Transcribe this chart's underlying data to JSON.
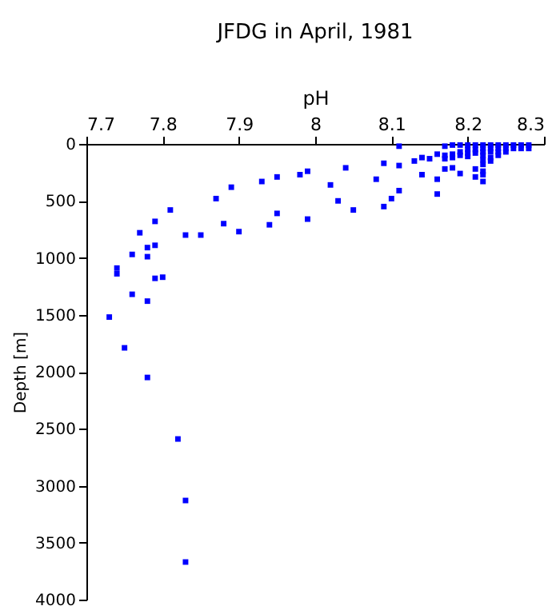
{
  "chart_data": {
    "type": "scatter",
    "title": "JFDG in April, 1981",
    "xlabel": "pH",
    "ylabel": "Depth [m]",
    "xlim": [
      7.7,
      8.3
    ],
    "xticks": [
      7.7,
      7.8,
      7.9,
      8,
      8.1,
      8.2,
      8.3
    ],
    "ylim": [
      4000,
      0
    ],
    "yticks": [
      0,
      500,
      1000,
      1500,
      2000,
      2500,
      3000,
      3500,
      4000
    ],
    "grid": false,
    "marker": "square",
    "legend": false,
    "series": [
      {
        "color": "#0000ff",
        "x": [
          7.98,
          7.95,
          7.93,
          7.89,
          7.87,
          7.81,
          7.79,
          7.77,
          7.83,
          7.85,
          7.88,
          7.9,
          7.94,
          7.95,
          7.78,
          7.79,
          7.78,
          7.76,
          7.74,
          7.74,
          7.79,
          7.8,
          7.76,
          7.78,
          7.73,
          7.75,
          7.78,
          7.82,
          7.83,
          7.83,
          7.99,
          7.99,
          8.02,
          8.04,
          8.03,
          8.05,
          8.08,
          8.09,
          8.09,
          8.1,
          8.11,
          8.11,
          8.11,
          8.13,
          8.14,
          8.14,
          8.15,
          8.16,
          8.16,
          8.16,
          8.17,
          8.17,
          8.17,
          8.17,
          8.18,
          8.18,
          8.18,
          8.18,
          8.19,
          8.19,
          8.19,
          8.19,
          8.2,
          8.2,
          8.2,
          8.2,
          8.21,
          8.21,
          8.21,
          8.21,
          8.21,
          8.22,
          8.22,
          8.22,
          8.22,
          8.22,
          8.22,
          8.22,
          8.22,
          8.22,
          8.23,
          8.23,
          8.23,
          8.23,
          8.23,
          8.24,
          8.24,
          8.24,
          8.24,
          8.25,
          8.25,
          8.25,
          8.26,
          8.26,
          8.27,
          8.27,
          8.28,
          8.28
        ],
        "values": [
          270,
          290,
          330,
          380,
          480,
          580,
          680,
          780,
          800,
          800,
          700,
          770,
          710,
          610,
          910,
          890,
          990,
          970,
          1090,
          1140,
          1180,
          1170,
          1320,
          1380,
          1520,
          1790,
          2050,
          2590,
          3130,
          3670,
          240,
          660,
          360,
          210,
          500,
          580,
          310,
          170,
          550,
          480,
          20,
          410,
          190,
          150,
          120,
          270,
          130,
          90,
          310,
          440,
          20,
          100,
          130,
          220,
          10,
          90,
          120,
          210,
          10,
          70,
          100,
          260,
          10,
          50,
          80,
          110,
          10,
          50,
          80,
          220,
          290,
          10,
          40,
          70,
          100,
          140,
          180,
          240,
          270,
          330,
          10,
          40,
          70,
          120,
          150,
          10,
          40,
          70,
          100,
          10,
          40,
          70,
          10,
          40,
          10,
          40,
          10,
          40
        ]
      }
    ]
  }
}
